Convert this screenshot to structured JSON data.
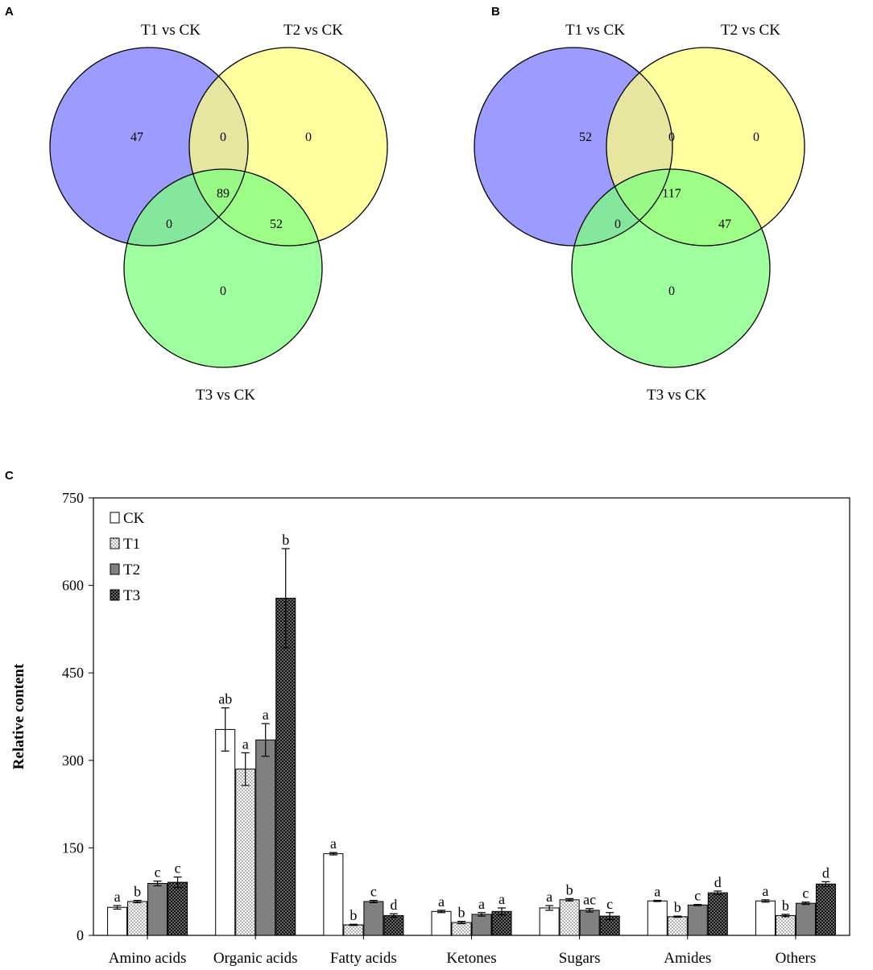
{
  "panels": {
    "a": "A",
    "b": "B",
    "c": "C"
  },
  "venn_a": {
    "labels": {
      "t1": "T1 vs CK",
      "t2": "T2 vs CK",
      "t3": "T3 vs CK"
    },
    "counts": {
      "t1_only": "47",
      "t1_t2": "0",
      "t2_only": "0",
      "all": "89",
      "t1_t3": "0",
      "t2_t3": "52",
      "t3_only": "0"
    }
  },
  "venn_b": {
    "labels": {
      "t1": "T1 vs CK",
      "t2": "T2 vs CK",
      "t3": "T3 vs CK"
    },
    "counts": {
      "t1_only": "52",
      "t1_t2": "0",
      "t2_only": "0",
      "all": "117",
      "t1_t3": "0",
      "t2_t3": "47",
      "t3_only": "0"
    }
  },
  "venn_colors": {
    "t1": "#7b7bff",
    "t2": "#ffff80",
    "t3": "#7dff7d"
  },
  "chart_data": {
    "type": "bar",
    "title": "",
    "xlabel": "",
    "ylabel": "Relative content",
    "ylim": [
      0,
      750
    ],
    "yticks": [
      0,
      150,
      300,
      450,
      600,
      750
    ],
    "categories": [
      "Amino acids",
      "Organic acids",
      "Fatty acids",
      "Ketones",
      "Sugars",
      "Amides",
      "Others"
    ],
    "series": [
      {
        "name": "CK",
        "pattern": "white",
        "values": [
          48,
          353,
          140,
          41,
          47,
          59,
          59
        ],
        "errors": [
          3,
          37,
          2,
          2,
          4,
          1,
          2
        ],
        "letters": [
          "a",
          "ab",
          "a",
          "a",
          "a",
          "a",
          "a"
        ]
      },
      {
        "name": "T1",
        "pattern": "dots",
        "values": [
          58,
          285,
          18,
          22,
          61,
          32,
          34
        ],
        "errors": [
          2,
          28,
          1,
          2,
          2,
          1,
          2
        ],
        "letters": [
          "b",
          "a",
          "b",
          "b",
          "b",
          "b",
          "b"
        ]
      },
      {
        "name": "T2",
        "pattern": "gray",
        "values": [
          89,
          335,
          58,
          36,
          43,
          52,
          55
        ],
        "errors": [
          4,
          28,
          2,
          3,
          3,
          1,
          2
        ],
        "letters": [
          "c",
          "a",
          "c",
          "a",
          "ac",
          "c",
          "c"
        ]
      },
      {
        "name": "T3",
        "pattern": "dark",
        "values": [
          91,
          578,
          34,
          41,
          33,
          73,
          88
        ],
        "errors": [
          9,
          85,
          3,
          6,
          6,
          3,
          4
        ],
        "letters": [
          "c",
          "b",
          "d",
          "a",
          "c",
          "d",
          "d"
        ]
      }
    ],
    "legend_position": "top-left"
  }
}
